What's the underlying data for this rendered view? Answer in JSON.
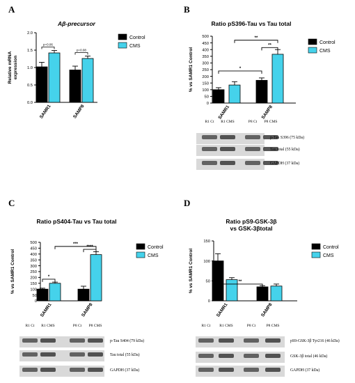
{
  "colors": {
    "control": "#000000",
    "cms": "#45d2eb",
    "blot_bg": "#d9d9d9",
    "band": "#3a3a3a"
  },
  "chart_data": [
    {
      "panel": "A",
      "type": "bar",
      "title": "Aβ-precursor",
      "ylabel": "Relative mRNA expression",
      "ylabel_lines": [
        "Relative mRNA",
        "expression"
      ],
      "ylim": [
        0,
        2.0
      ],
      "yticks": [
        0.0,
        0.5,
        1.0,
        1.5,
        2.0
      ],
      "ytick_labels": [
        "0.0",
        "0.5",
        "1.0",
        "1.5",
        "2.0"
      ],
      "categories": [
        "SAMR1",
        "SAMP8"
      ],
      "legend": [
        "Control",
        "CMS"
      ],
      "series": [
        {
          "name": "Control",
          "values": [
            1.02,
            0.93
          ],
          "errors": [
            0.13,
            0.11
          ]
        },
        {
          "name": "CMS",
          "values": [
            1.42,
            1.26
          ],
          "errors": [
            0.07,
            0.07
          ]
        }
      ],
      "annotations": [
        {
          "text": "p=0.06",
          "category": 0
        },
        {
          "text": "p=0.08",
          "category": 1
        }
      ]
    },
    {
      "panel": "B",
      "type": "bar",
      "title": "Ratio pS396-Tau vs Tau total",
      "ylabel": "% vs SAMR1 Control",
      "ylim": [
        0,
        500
      ],
      "yticks": [
        0,
        50,
        100,
        150,
        200,
        250,
        300,
        350,
        400,
        450,
        500
      ],
      "ytick_labels": [
        "0",
        "50",
        "100",
        "150",
        "200",
        "250",
        "300",
        "350",
        "400",
        "450",
        "500"
      ],
      "categories": [
        "SAMR1",
        "SAMP8"
      ],
      "legend": [
        "Control",
        "CMS"
      ],
      "series": [
        {
          "name": "Control",
          "values": [
            100,
            170
          ],
          "errors": [
            15,
            18
          ]
        },
        {
          "name": "CMS",
          "values": [
            135,
            365
          ],
          "errors": [
            25,
            35
          ]
        }
      ],
      "annotations": [
        {
          "text": "*",
          "from": "SAMR1-Control",
          "to": "SAMP8-Control"
        },
        {
          "text": "**",
          "from": "SAMR1-CMS",
          "to": "SAMP8-CMS"
        },
        {
          "text": "**",
          "from": "SAMP8-Control",
          "to": "SAMP8-CMS"
        }
      ],
      "blot": {
        "columns": [
          "R1 Ct",
          "R1 CMS",
          "P8 Ct",
          "P8 CMS"
        ],
        "rows": [
          "p-Tau S396 (75 kDa)",
          "Tau total (55 kDa)",
          "GAPDH (37 kDa)"
        ]
      }
    },
    {
      "panel": "C",
      "type": "bar",
      "title": "Ratio pS404-Tau vs Tau total",
      "ylabel": "% vs SAMR1 Control",
      "ylim": [
        0,
        500
      ],
      "yticks": [
        0,
        50,
        100,
        150,
        200,
        250,
        300,
        350,
        400,
        450,
        500
      ],
      "ytick_labels": [
        "0",
        "50",
        "100",
        "150",
        "200",
        "250",
        "300",
        "350",
        "400",
        "450",
        "500"
      ],
      "categories": [
        "SAMR1",
        "SAMP8"
      ],
      "legend": [
        "Control",
        "CMS"
      ],
      "series": [
        {
          "name": "Control",
          "values": [
            100,
            100
          ],
          "errors": [
            8,
            25
          ]
        },
        {
          "name": "CMS",
          "values": [
            150,
            395
          ],
          "errors": [
            10,
            25
          ]
        }
      ],
      "annotations": [
        {
          "text": "*",
          "from": "SAMR1-Control",
          "to": "SAMR1-CMS"
        },
        {
          "text": "***",
          "from": "SAMR1-CMS",
          "to": "SAMP8-CMS"
        },
        {
          "text": "****",
          "from": "SAMP8-Control",
          "to": "SAMP8-CMS"
        }
      ],
      "blot": {
        "columns": [
          "R1 Ct",
          "R1 CMS",
          "P8 Ct",
          "P8 CMS"
        ],
        "rows": [
          "p-Tau S404 (79 kDa)",
          "Tau total (55 kDa)",
          "GAPDH (37 kDa)"
        ]
      }
    },
    {
      "panel": "D",
      "type": "bar",
      "title": "Ratio pS9-GSK-3β vs GSK-3βtotal",
      "title_lines": [
        "Ratio pS9-GSK-3β",
        "vs GSK-3βtotal"
      ],
      "ylabel": "% vs SAMR1 Control",
      "ylim": [
        0,
        150
      ],
      "yticks": [
        0,
        50,
        100,
        150
      ],
      "ytick_labels": [
        "0",
        "50",
        "100",
        "150"
      ],
      "categories": [
        "SAMR1",
        "SAMP8"
      ],
      "legend": [
        "Control",
        "CMS"
      ],
      "series": [
        {
          "name": "Control",
          "values": [
            100,
            35
          ],
          "errors": [
            18,
            3
          ]
        },
        {
          "name": "CMS",
          "values": [
            53,
            37
          ],
          "errors": [
            5,
            5
          ]
        }
      ],
      "annotations": [
        {
          "text": "**",
          "from": "SAMR1-Control",
          "to": "SAMP8-Control"
        }
      ],
      "blot": {
        "columns": [
          "R1 Ct",
          "R1 CMS",
          "P8 Ct",
          "P8 CMS"
        ],
        "rows": [
          "pS9-GSK-3β Tyr216 (46 kDa)",
          "GSK-3β total (46 kDa)",
          "GAPDH (37 kDa)"
        ]
      }
    }
  ]
}
